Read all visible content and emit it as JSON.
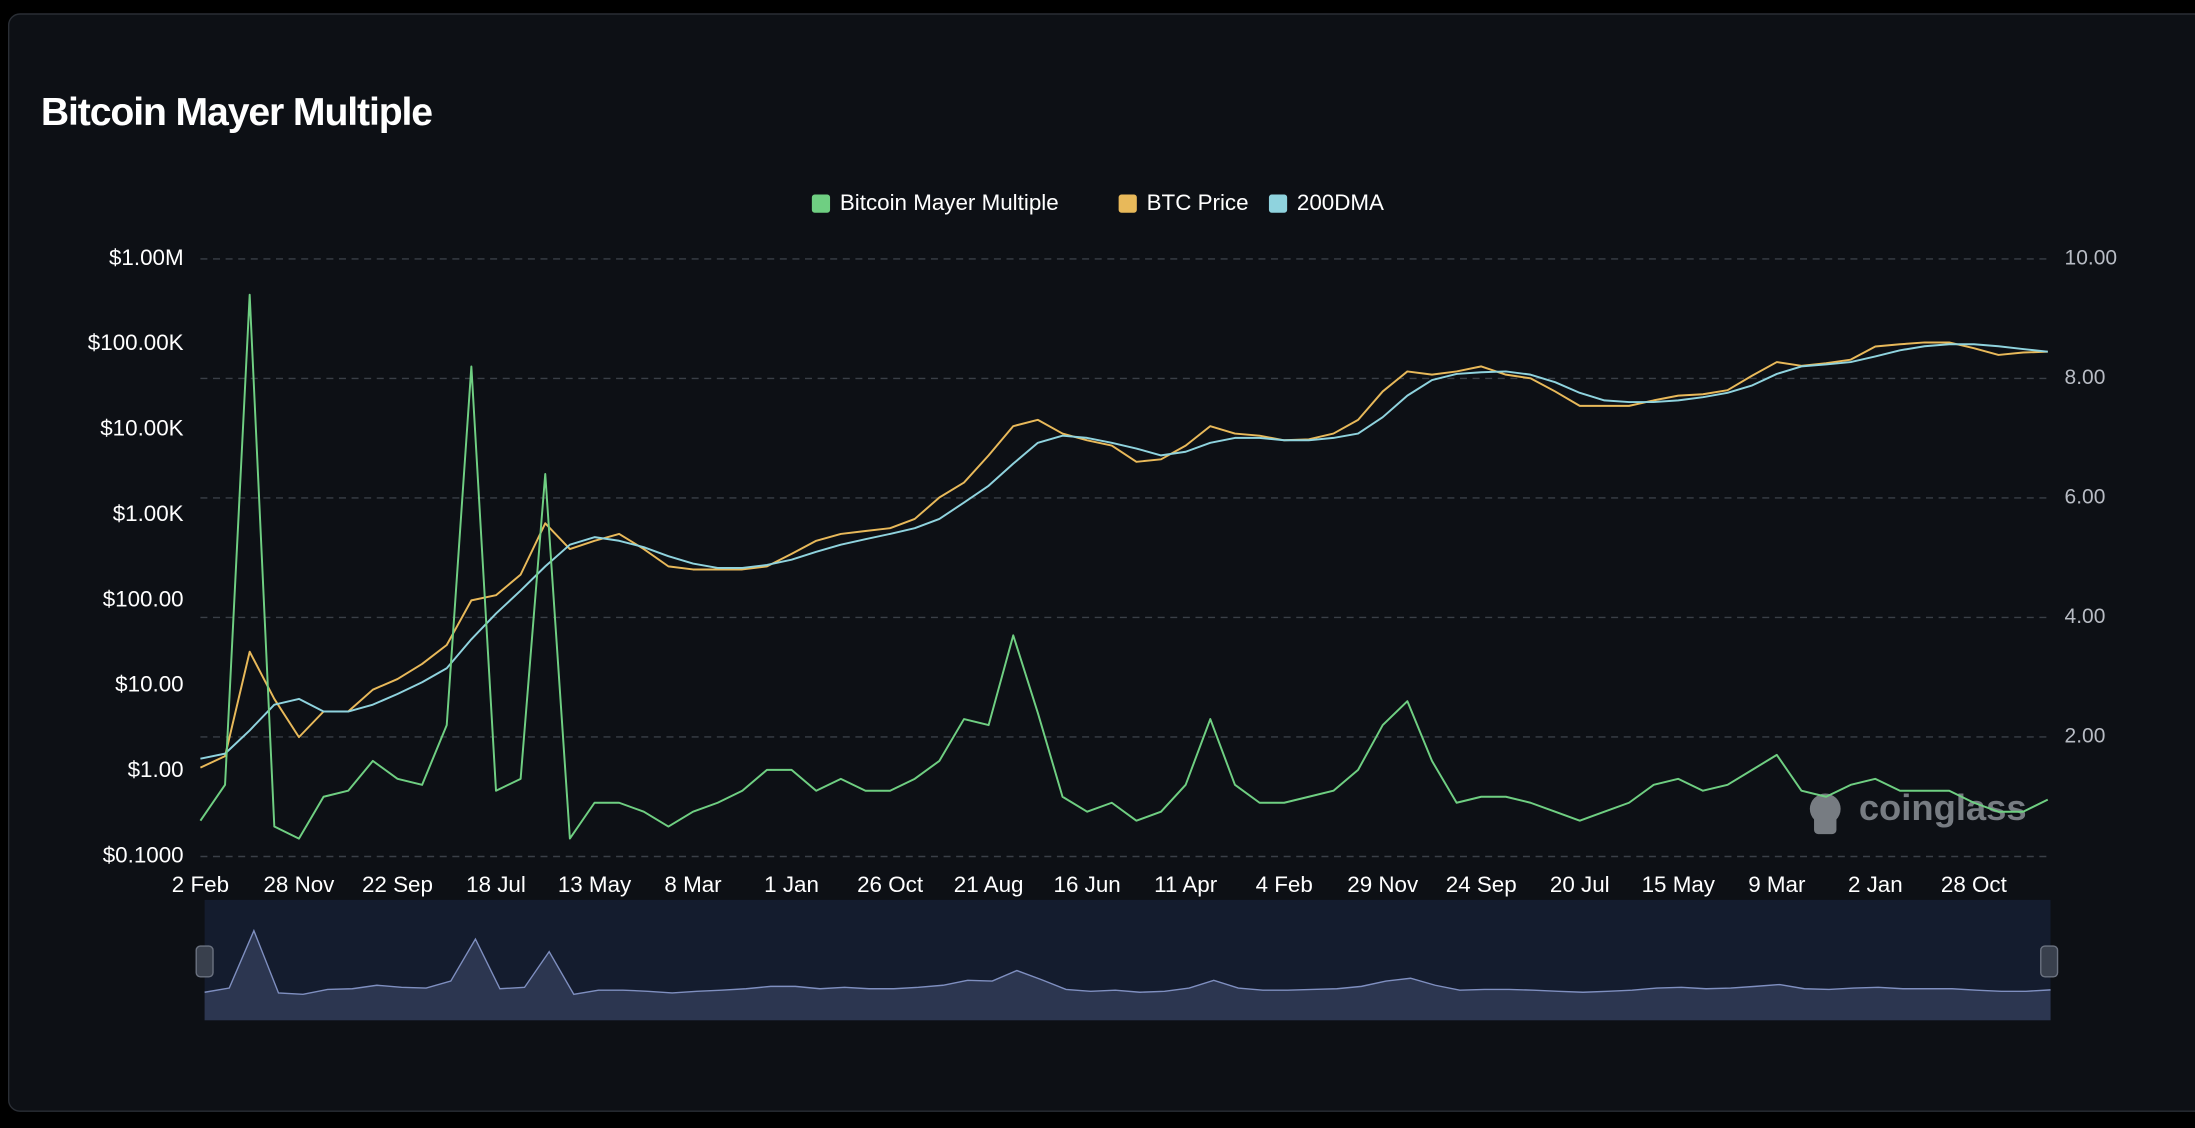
{
  "chart_data": {
    "type": "line",
    "title": "Bitcoin Mayer Multiple",
    "watermark": "coinglass",
    "categories": [
      "2 Feb",
      null,
      null,
      null,
      "28 Nov",
      null,
      null,
      null,
      "22 Sep",
      null,
      null,
      null,
      "18 Jul",
      null,
      null,
      null,
      "13 May",
      null,
      null,
      null,
      "8 Mar",
      null,
      null,
      null,
      "1 Jan",
      null,
      null,
      null,
      "26 Oct",
      null,
      null,
      null,
      "21 Aug",
      null,
      null,
      null,
      "16 Jun",
      null,
      null,
      null,
      "11 Apr",
      null,
      null,
      null,
      "4 Feb",
      null,
      null,
      null,
      "29 Nov",
      null,
      null,
      null,
      "24 Sep",
      null,
      null,
      null,
      "20 Jul",
      null,
      null,
      null,
      "15 May",
      null,
      null,
      null,
      "9 Mar",
      null,
      null,
      null,
      "2 Jan",
      null,
      null,
      null,
      "28 Oct",
      null,
      null,
      null
    ],
    "series": [
      {
        "name": "Bitcoin Mayer Multiple",
        "color": "#6fcf82",
        "axis": "y2",
        "values": [
          0.6,
          1.2,
          9.4,
          0.5,
          0.3,
          1.0,
          1.1,
          1.6,
          1.3,
          1.2,
          2.2,
          8.2,
          1.1,
          1.3,
          6.4,
          0.3,
          0.9,
          0.9,
          0.75,
          0.5,
          0.75,
          0.9,
          1.1,
          1.45,
          1.45,
          1.1,
          1.3,
          1.1,
          1.1,
          1.3,
          1.6,
          2.3,
          2.2,
          3.7,
          2.4,
          1.0,
          0.75,
          0.9,
          0.6,
          0.75,
          1.2,
          2.3,
          1.2,
          0.9,
          0.9,
          1.0,
          1.1,
          1.45,
          2.2,
          2.6,
          1.6,
          0.9,
          1.0,
          1.0,
          0.9,
          0.75,
          0.6,
          0.75,
          0.9,
          1.2,
          1.3,
          1.1,
          1.2,
          1.45,
          1.7,
          1.1,
          1.0,
          1.2,
          1.3,
          1.1,
          1.1,
          1.1,
          0.9,
          0.75,
          0.75,
          0.95
        ]
      },
      {
        "name": "BTC Price",
        "color": "#e8b95a",
        "values": [
          1.1,
          1.5,
          25,
          7,
          2.5,
          5,
          5,
          9,
          12,
          18,
          30,
          100,
          115,
          200,
          800,
          400,
          500,
          600,
          400,
          250,
          230,
          230,
          230,
          250,
          350,
          500,
          600,
          650,
          700,
          900,
          1600,
          2400,
          5000,
          11000,
          13000,
          9000,
          7500,
          6500,
          4200,
          4500,
          6500,
          11000,
          9000,
          8500,
          7500,
          7700,
          9000,
          13000,
          28000,
          48000,
          44000,
          48000,
          55000,
          44000,
          40000,
          28000,
          19000,
          19000,
          19000,
          22000,
          25000,
          26000,
          29000,
          43000,
          62000,
          56000,
          60000,
          66000,
          94000,
          100000,
          105000,
          105000,
          90000,
          75000,
          80000,
          82000
        ]
      },
      {
        "name": "200DMA",
        "color": "#8fd3de",
        "values": [
          1.4,
          1.6,
          3,
          6,
          7,
          5,
          5,
          6,
          8,
          11,
          16,
          35,
          70,
          130,
          250,
          450,
          550,
          500,
          420,
          330,
          270,
          240,
          240,
          260,
          300,
          370,
          450,
          520,
          600,
          700,
          900,
          1400,
          2200,
          4000,
          7000,
          8500,
          8000,
          7000,
          6000,
          5000,
          5500,
          7000,
          8000,
          8000,
          7500,
          7500,
          8000,
          9000,
          14000,
          25000,
          38000,
          45000,
          47000,
          48000,
          44000,
          36000,
          27000,
          22000,
          21000,
          21000,
          22000,
          24000,
          27000,
          33000,
          45000,
          55000,
          58000,
          62000,
          72000,
          85000,
          95000,
          100000,
          100000,
          95000,
          88000,
          82000
        ]
      }
    ],
    "yscale": "log",
    "ylim": [
      0.1,
      1000000
    ],
    "yticks": [
      {
        "value": 0.1,
        "label": "$0.1000"
      },
      {
        "value": 1,
        "label": "$1.00"
      },
      {
        "value": 10,
        "label": "$10.00"
      },
      {
        "value": 100,
        "label": "$100.00"
      },
      {
        "value": 1000,
        "label": "$1.00K"
      },
      {
        "value": 10000,
        "label": "$10.00K"
      },
      {
        "value": 100000,
        "label": "$100.00K"
      },
      {
        "value": 1000000,
        "label": "$1.00M"
      }
    ],
    "y2lim": [
      0,
      10
    ],
    "y2ticks": [
      {
        "value": 2,
        "label": "2.00"
      },
      {
        "value": 4,
        "label": "4.00"
      },
      {
        "value": 6,
        "label": "6.00"
      },
      {
        "value": 8,
        "label": "8.00"
      },
      {
        "value": 10,
        "label": "10.00"
      }
    ],
    "grid": true,
    "legend": "top"
  }
}
